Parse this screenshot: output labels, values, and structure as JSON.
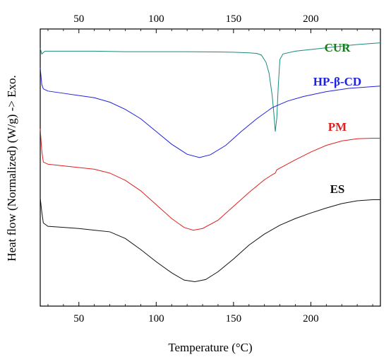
{
  "chart_data": {
    "type": "line",
    "xlabel": "Temperature (°C)",
    "ylabel": "Heat flow (Normalized) (W/g) -> Exo.",
    "xlim": [
      25,
      245
    ],
    "x_ticks": [
      50,
      100,
      150,
      200
    ],
    "grid": false,
    "y_ticks_shown": false,
    "series": [
      {
        "name": "CUR",
        "color": "#1a8a7a",
        "label_color": "#1a7a1a",
        "points": [
          [
            25,
            4.65
          ],
          [
            26,
            4.55
          ],
          [
            28,
            4.6
          ],
          [
            40,
            4.6
          ],
          [
            60,
            4.6
          ],
          [
            80,
            4.59
          ],
          [
            100,
            4.59
          ],
          [
            120,
            4.59
          ],
          [
            140,
            4.585
          ],
          [
            150,
            4.58
          ],
          [
            160,
            4.57
          ],
          [
            165,
            4.56
          ],
          [
            168,
            4.53
          ],
          [
            171,
            4.4
          ],
          [
            173,
            4.2
          ],
          [
            175,
            3.8
          ],
          [
            176,
            3.5
          ],
          [
            177,
            3.15
          ],
          [
            178,
            3.4
          ],
          [
            179,
            4.0
          ],
          [
            180,
            4.45
          ],
          [
            182,
            4.55
          ],
          [
            190,
            4.6
          ],
          [
            200,
            4.63
          ],
          [
            210,
            4.66
          ],
          [
            220,
            4.69
          ],
          [
            230,
            4.72
          ],
          [
            240,
            4.74
          ],
          [
            245,
            4.75
          ]
        ]
      },
      {
        "name": "HP-β-CD",
        "color": "#2020e0",
        "label_color": "#2020e0",
        "points": [
          [
            25,
            4.3
          ],
          [
            26,
            4.0
          ],
          [
            27,
            3.92
          ],
          [
            30,
            3.88
          ],
          [
            40,
            3.84
          ],
          [
            50,
            3.8
          ],
          [
            60,
            3.76
          ],
          [
            70,
            3.68
          ],
          [
            80,
            3.55
          ],
          [
            90,
            3.38
          ],
          [
            100,
            3.15
          ],
          [
            110,
            2.92
          ],
          [
            120,
            2.74
          ],
          [
            128,
            2.68
          ],
          [
            135,
            2.73
          ],
          [
            145,
            2.9
          ],
          [
            155,
            3.15
          ],
          [
            165,
            3.38
          ],
          [
            175,
            3.58
          ],
          [
            185,
            3.7
          ],
          [
            195,
            3.78
          ],
          [
            210,
            3.87
          ],
          [
            225,
            3.93
          ],
          [
            240,
            3.96
          ],
          [
            245,
            3.97
          ]
        ]
      },
      {
        "name": "PM",
        "color": "#e02020",
        "label_color": "#e02020",
        "points": [
          [
            25,
            3.2
          ],
          [
            26,
            2.8
          ],
          [
            27,
            2.6
          ],
          [
            30,
            2.56
          ],
          [
            40,
            2.53
          ],
          [
            50,
            2.5
          ],
          [
            60,
            2.47
          ],
          [
            70,
            2.4
          ],
          [
            80,
            2.27
          ],
          [
            90,
            2.08
          ],
          [
            100,
            1.83
          ],
          [
            110,
            1.58
          ],
          [
            118,
            1.42
          ],
          [
            124,
            1.37
          ],
          [
            130,
            1.4
          ],
          [
            140,
            1.55
          ],
          [
            150,
            1.8
          ],
          [
            160,
            2.05
          ],
          [
            170,
            2.28
          ],
          [
            175,
            2.37
          ],
          [
            177,
            2.4
          ],
          [
            178,
            2.46
          ],
          [
            182,
            2.52
          ],
          [
            190,
            2.64
          ],
          [
            200,
            2.78
          ],
          [
            210,
            2.9
          ],
          [
            220,
            2.98
          ],
          [
            230,
            3.02
          ],
          [
            240,
            3.03
          ],
          [
            245,
            3.03
          ]
        ]
      },
      {
        "name": "ES",
        "color": "#111111",
        "label_color": "#111111",
        "points": [
          [
            25,
            1.95
          ],
          [
            26,
            1.7
          ],
          [
            27,
            1.5
          ],
          [
            30,
            1.44
          ],
          [
            40,
            1.42
          ],
          [
            50,
            1.4
          ],
          [
            60,
            1.37
          ],
          [
            70,
            1.34
          ],
          [
            80,
            1.22
          ],
          [
            90,
            1.02
          ],
          [
            100,
            0.8
          ],
          [
            110,
            0.6
          ],
          [
            118,
            0.47
          ],
          [
            125,
            0.44
          ],
          [
            132,
            0.48
          ],
          [
            140,
            0.62
          ],
          [
            150,
            0.85
          ],
          [
            160,
            1.1
          ],
          [
            170,
            1.3
          ],
          [
            180,
            1.46
          ],
          [
            190,
            1.58
          ],
          [
            200,
            1.68
          ],
          [
            210,
            1.77
          ],
          [
            220,
            1.85
          ],
          [
            230,
            1.9
          ],
          [
            240,
            1.92
          ],
          [
            245,
            1.92
          ]
        ]
      }
    ]
  }
}
